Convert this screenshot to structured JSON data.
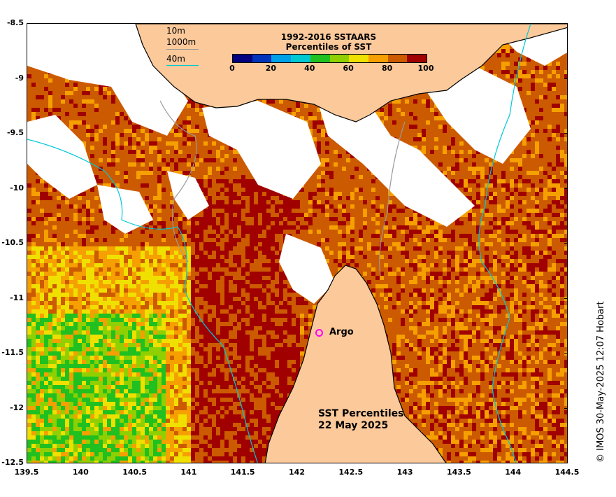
{
  "map": {
    "x_ticks": [
      "139.5",
      "140",
      "140.5",
      "141",
      "141.5",
      "142",
      "142.5",
      "143",
      "143.5",
      "144",
      "144.5"
    ],
    "y_ticks": [
      "-8.5",
      "-9",
      "-9.5",
      "-10",
      "-10.5",
      "-11",
      "-11.5",
      "-12",
      "-12.5"
    ],
    "colorbar": {
      "title_line1": "1992-2016 SSTAARS",
      "title_line2": "Percentiles of SST",
      "tick_labels": [
        "0",
        "20",
        "40",
        "60",
        "80",
        "100"
      ],
      "colors": [
        "#000080",
        "#0033bb",
        "#00a0e8",
        "#00c8d0",
        "#20c020",
        "#90d000",
        "#f0e000",
        "#f5a000",
        "#cc5a00",
        "#a00000"
      ]
    },
    "contour_legend": [
      "10m",
      "1000m",
      "40m"
    ],
    "colors": {
      "land": "#fcc99b",
      "no_data": "#ffffff",
      "contour_cyan": "#00c8d8",
      "argo_marker": "#ff00ff"
    },
    "argo_label": "Argo",
    "main_title_line1": "SST Percentiles",
    "main_title_line2": "22 May 2025",
    "credit": "© IMOS 30-May-2025 12:07 Hobart"
  }
}
